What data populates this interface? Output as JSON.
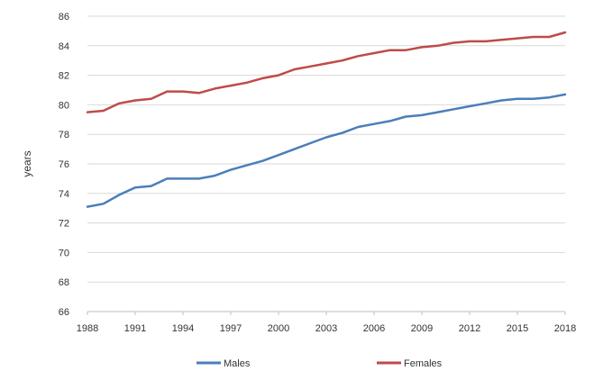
{
  "chart_data": {
    "type": "line",
    "title": "",
    "xlabel": "",
    "ylabel": "years",
    "ylim": [
      66,
      86
    ],
    "xlim": [
      1988,
      2018
    ],
    "y_ticks": [
      "66",
      "68",
      "70",
      "72",
      "74",
      "76",
      "78",
      "80",
      "82",
      "84",
      "86"
    ],
    "x_ticks": [
      "1988",
      "1991",
      "1994",
      "1997",
      "2000",
      "2003",
      "2006",
      "2009",
      "2012",
      "2015",
      "2018"
    ],
    "grid": "horizontal",
    "legend_position": "bottom",
    "x": [
      1988,
      1989,
      1990,
      1991,
      1992,
      1993,
      1994,
      1995,
      1996,
      1997,
      1998,
      1999,
      2000,
      2001,
      2002,
      2003,
      2004,
      2005,
      2006,
      2007,
      2008,
      2009,
      2010,
      2011,
      2012,
      2013,
      2014,
      2015,
      2016,
      2017,
      2018
    ],
    "series": [
      {
        "name": "Males",
        "color": "#4a7ebb",
        "values": [
          73.1,
          73.3,
          73.9,
          74.4,
          74.5,
          75.0,
          75.0,
          75.0,
          75.2,
          75.6,
          75.9,
          76.2,
          76.6,
          77.0,
          77.4,
          77.8,
          78.1,
          78.5,
          78.7,
          78.9,
          79.2,
          79.3,
          79.5,
          79.7,
          79.9,
          80.1,
          80.3,
          80.4,
          80.4,
          80.5,
          80.7
        ]
      },
      {
        "name": "Females",
        "color": "#be4b48",
        "values": [
          79.5,
          79.6,
          80.1,
          80.3,
          80.4,
          80.9,
          80.9,
          80.8,
          81.1,
          81.3,
          81.5,
          81.8,
          82.0,
          82.4,
          82.6,
          82.8,
          83.0,
          83.3,
          83.5,
          83.7,
          83.7,
          83.9,
          84.0,
          84.2,
          84.3,
          84.3,
          84.4,
          84.5,
          84.6,
          84.6,
          84.9
        ]
      }
    ]
  }
}
